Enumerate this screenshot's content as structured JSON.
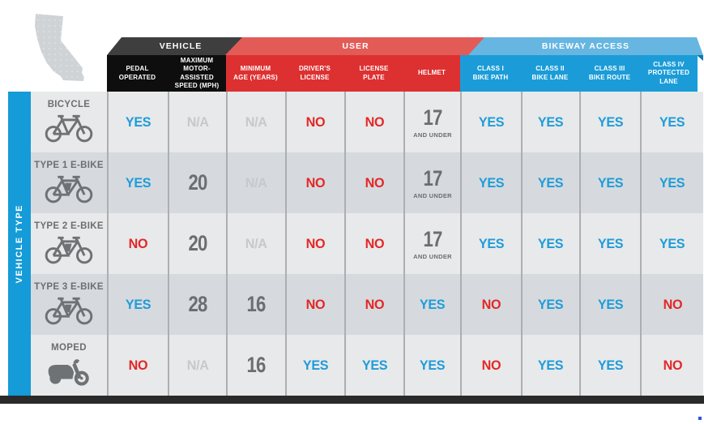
{
  "sidebar": {
    "label": "VEHICLE TYPE"
  },
  "groups": [
    {
      "id": "vehicle",
      "label": "VEHICLE"
    },
    {
      "id": "user",
      "label": "USER"
    },
    {
      "id": "bikeway",
      "label": "BIKEWAY ACCESS"
    }
  ],
  "columns": [
    {
      "label": "PEDAL\nOPERATED",
      "group": "vehicle"
    },
    {
      "label": "MAXIMUM\nMOTOR-ASSISTED\nSPEED (MPH)",
      "group": "vehicle"
    },
    {
      "label": "MINIMUM\nAGE (YEARS)",
      "group": "user"
    },
    {
      "label": "DRIVER'S\nLICENSE",
      "group": "user"
    },
    {
      "label": "LICENSE\nPLATE",
      "group": "user"
    },
    {
      "label": "HELMET",
      "group": "user"
    },
    {
      "label": "CLASS I\nBIKE PATH",
      "group": "bikeway"
    },
    {
      "label": "CLASS II\nBIKE LANE",
      "group": "bikeway"
    },
    {
      "label": "CLASS III\nBIKE ROUTE",
      "group": "bikeway"
    },
    {
      "label": "CLASS IV\nPROTECTED LANE",
      "group": "bikeway"
    }
  ],
  "rows": [
    {
      "label": "BICYCLE",
      "icon": "bicycle-icon",
      "cells": [
        {
          "text": "YES",
          "type": "yes"
        },
        {
          "text": "N/A",
          "type": "na"
        },
        {
          "text": "N/A",
          "type": "na"
        },
        {
          "text": "NO",
          "type": "no"
        },
        {
          "text": "NO",
          "type": "no"
        },
        {
          "text": "17",
          "sub": "AND UNDER",
          "type": "num"
        },
        {
          "text": "YES",
          "type": "yes"
        },
        {
          "text": "YES",
          "type": "yes"
        },
        {
          "text": "YES",
          "type": "yes"
        },
        {
          "text": "YES",
          "type": "yes"
        }
      ]
    },
    {
      "label": "TYPE 1 E-BIKE",
      "icon": "ebike-icon",
      "cells": [
        {
          "text": "YES",
          "type": "yes"
        },
        {
          "text": "20",
          "type": "num"
        },
        {
          "text": "N/A",
          "type": "na"
        },
        {
          "text": "NO",
          "type": "no"
        },
        {
          "text": "NO",
          "type": "no"
        },
        {
          "text": "17",
          "sub": "AND UNDER",
          "type": "num"
        },
        {
          "text": "YES",
          "type": "yes"
        },
        {
          "text": "YES",
          "type": "yes"
        },
        {
          "text": "YES",
          "type": "yes"
        },
        {
          "text": "YES",
          "type": "yes"
        }
      ]
    },
    {
      "label": "TYPE 2 E-BIKE",
      "icon": "ebike-icon",
      "cells": [
        {
          "text": "NO",
          "type": "no"
        },
        {
          "text": "20",
          "type": "num"
        },
        {
          "text": "N/A",
          "type": "na"
        },
        {
          "text": "NO",
          "type": "no"
        },
        {
          "text": "NO",
          "type": "no"
        },
        {
          "text": "17",
          "sub": "AND UNDER",
          "type": "num"
        },
        {
          "text": "YES",
          "type": "yes"
        },
        {
          "text": "YES",
          "type": "yes"
        },
        {
          "text": "YES",
          "type": "yes"
        },
        {
          "text": "YES",
          "type": "yes"
        }
      ]
    },
    {
      "label": "TYPE 3 E-BIKE",
      "icon": "ebike-icon",
      "cells": [
        {
          "text": "YES",
          "type": "yes"
        },
        {
          "text": "28",
          "type": "num"
        },
        {
          "text": "16",
          "type": "num"
        },
        {
          "text": "NO",
          "type": "no"
        },
        {
          "text": "NO",
          "type": "no"
        },
        {
          "text": "YES",
          "type": "yes"
        },
        {
          "text": "NO",
          "type": "no"
        },
        {
          "text": "YES",
          "type": "yes"
        },
        {
          "text": "YES",
          "type": "yes"
        },
        {
          "text": "NO",
          "type": "no"
        }
      ]
    },
    {
      "label": "MOPED",
      "icon": "moped-icon",
      "cells": [
        {
          "text": "NO",
          "type": "no"
        },
        {
          "text": "N/A",
          "type": "na"
        },
        {
          "text": "16",
          "type": "num"
        },
        {
          "text": "YES",
          "type": "yes"
        },
        {
          "text": "YES",
          "type": "yes"
        },
        {
          "text": "YES",
          "type": "yes"
        },
        {
          "text": "NO",
          "type": "no"
        },
        {
          "text": "YES",
          "type": "yes"
        },
        {
          "text": "YES",
          "type": "yes"
        },
        {
          "text": "NO",
          "type": "no"
        }
      ]
    }
  ],
  "colors": {
    "group_vehicle": "#0e0e0e",
    "group_user": "#dd3131",
    "group_bikeway": "#1b9cd8",
    "flap_vehicle": "#3e3e3e",
    "flap_user": "#e25b57",
    "flap_bikeway": "#66b6e1",
    "yes_text": "#1e9cd9",
    "no_text": "#e32726",
    "na_text": "#c6c9cb",
    "number_text": "#6a6e70",
    "row_odd": "#e8e9ea",
    "row_even": "#d6dade",
    "axis_bar": "#159bd8"
  }
}
